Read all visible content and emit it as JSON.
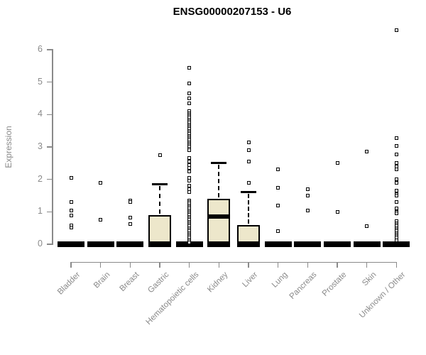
{
  "page": {
    "title": "ENSG00000207153 - U6"
  },
  "chart_data": {
    "type": "box",
    "title": "ENSG00000207153 - U6",
    "ylabel": "Expression",
    "xlabel": "",
    "ylim": [
      0,
      6.8
    ],
    "yticks": [
      0,
      1,
      2,
      3,
      4,
      5,
      6
    ],
    "grid": false,
    "legend": null,
    "outlier_glyph": "open-square",
    "colors": {
      "box_fill": "#EDE7CB",
      "box_border": "#000000",
      "axis": "#8A8A8A",
      "tick_label": "#8A8A8A",
      "title": "#000000",
      "outlier_fill": "#FFFFFF"
    },
    "categories": [
      "Bladder",
      "Brain",
      "Breast",
      "Gastric",
      "Hematopoietic cells",
      "Kidney",
      "Liver",
      "Lung",
      "Pancreas",
      "Prostate",
      "Skin",
      "Unknown / Other"
    ],
    "series": [
      {
        "name": "Bladder",
        "q1": 0,
        "median": 0,
        "q3": 0,
        "whisker_low": 0,
        "whisker_high": 0,
        "outliers": [
          2.05,
          1.3,
          1.03,
          0.88,
          0.57,
          0.52
        ]
      },
      {
        "name": "Brain",
        "q1": 0,
        "median": 0,
        "q3": 0,
        "whisker_low": 0,
        "whisker_high": 0,
        "outliers": [
          1.9,
          0.75
        ]
      },
      {
        "name": "Breast",
        "q1": 0,
        "median": 0,
        "q3": 0,
        "whisker_low": 0,
        "whisker_high": 0,
        "outliers": [
          1.35,
          1.3,
          0.82,
          0.62
        ]
      },
      {
        "name": "Gastric",
        "q1": 0,
        "median": 0,
        "q3": 0.9,
        "whisker_low": 0,
        "whisker_high": 1.85,
        "outliers": [
          2.75
        ]
      },
      {
        "name": "Hematopoietic cells",
        "q1": 0,
        "median": 0,
        "q3": 0,
        "whisker_low": 0,
        "whisker_high": 0,
        "outliers": [
          5.45,
          4.95,
          4.65,
          4.5,
          4.35,
          4.1,
          4.05,
          4.0,
          3.95,
          3.9,
          3.85,
          3.8,
          3.75,
          3.7,
          3.65,
          3.6,
          3.55,
          3.5,
          3.45,
          3.4,
          3.35,
          3.3,
          3.25,
          3.2,
          3.15,
          3.1,
          3.05,
          3.0,
          2.95,
          2.9,
          2.65,
          2.55,
          2.45,
          2.35,
          2.25,
          2.05,
          1.95,
          1.8,
          1.7,
          1.6,
          1.35,
          1.3,
          1.25,
          1.2,
          1.15,
          1.1,
          1.05,
          1.0,
          0.95,
          0.9,
          0.85,
          0.8,
          0.75,
          0.7,
          0.65,
          0.6,
          0.55,
          0.5,
          0.45,
          0.4,
          0.35,
          0.3,
          0.25,
          0.2,
          0.15,
          0.1,
          0.05
        ]
      },
      {
        "name": "Kidney",
        "q1": 0,
        "median": 0.85,
        "q3": 1.4,
        "whisker_low": 0,
        "whisker_high": 2.5,
        "outliers": []
      },
      {
        "name": "Liver",
        "q1": 0,
        "median": 0,
        "q3": 0.6,
        "whisker_low": 0,
        "whisker_high": 1.6,
        "outliers": [
          3.15,
          2.9,
          2.55,
          1.9
        ]
      },
      {
        "name": "Lung",
        "q1": 0,
        "median": 0,
        "q3": 0,
        "whisker_low": 0,
        "whisker_high": 0,
        "outliers": [
          2.3,
          1.75,
          1.2,
          0.4
        ]
      },
      {
        "name": "Pancreas",
        "q1": 0,
        "median": 0,
        "q3": 0,
        "whisker_low": 0,
        "whisker_high": 0,
        "outliers": [
          1.7,
          1.5,
          1.05
        ]
      },
      {
        "name": "Prostate",
        "q1": 0,
        "median": 0,
        "q3": 0,
        "whisker_low": 0,
        "whisker_high": 0,
        "outliers": [
          2.5,
          1.0
        ]
      },
      {
        "name": "Skin",
        "q1": 0,
        "median": 0,
        "q3": 0,
        "whisker_low": 0,
        "whisker_high": 0,
        "outliers": [
          2.85,
          0.55
        ]
      },
      {
        "name": "Unknown / Other",
        "q1": 0,
        "median": 0,
        "q3": 0,
        "whisker_low": 0,
        "whisker_high": 0,
        "outliers": [
          6.6,
          3.28,
          3.04,
          2.76,
          2.5,
          2.4,
          2.3,
          2.0,
          1.9,
          1.65,
          1.55,
          1.5,
          1.3,
          1.1,
          1.0,
          0.95,
          0.72,
          0.65,
          0.6,
          0.55,
          0.5,
          0.45,
          0.4,
          0.35,
          0.3,
          0.26,
          0.2,
          0.13
        ]
      }
    ]
  }
}
